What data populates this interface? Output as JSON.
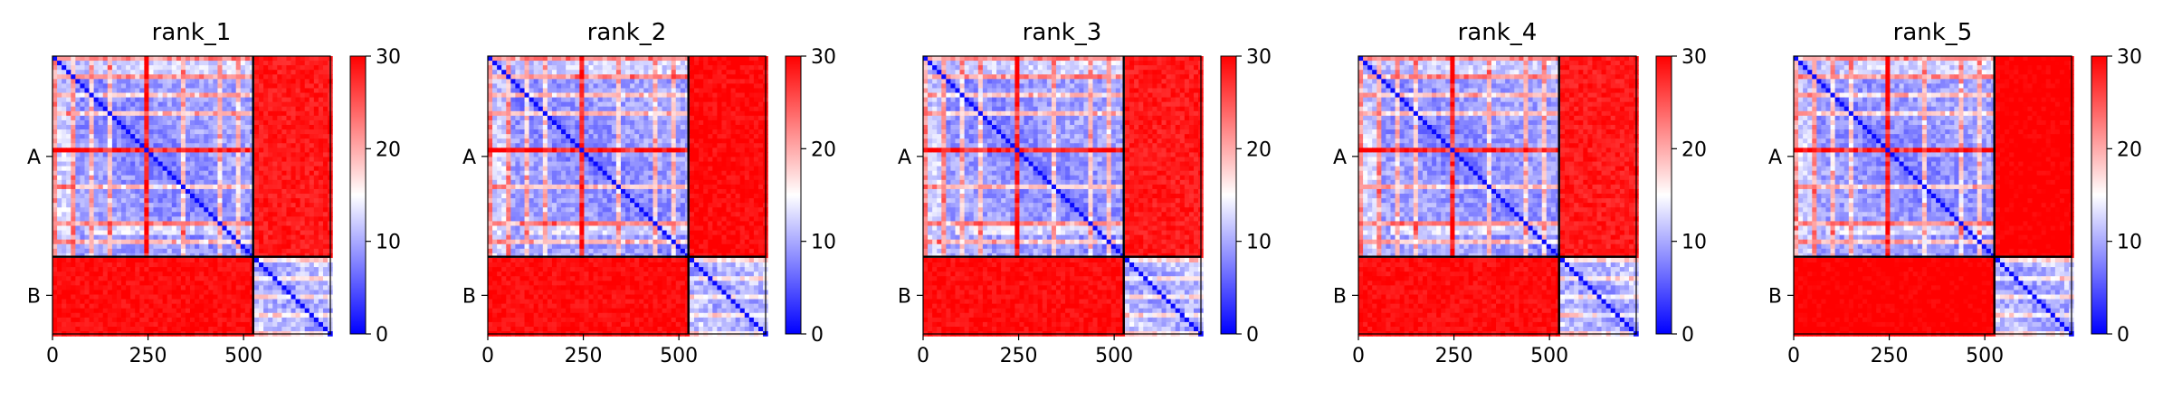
{
  "chart_data": [
    {
      "type": "heatmap",
      "title": "rank_1",
      "chains": [
        {
          "name": "A",
          "start": 0,
          "end": 525
        },
        {
          "name": "B",
          "start": 525,
          "end": 727
        }
      ],
      "xticks": [
        0,
        250,
        500
      ],
      "xlim": [
        0,
        727
      ],
      "colorbar": {
        "min": 0,
        "max": 30,
        "ticks": [
          0,
          10,
          20,
          30
        ],
        "colormap": "bwr"
      },
      "matrix_shade": {
        "A-A": 5,
        "A-B": 27,
        "B-A": 28,
        "B-B": 6
      }
    },
    {
      "type": "heatmap",
      "title": "rank_2",
      "chains": [
        {
          "name": "A",
          "start": 0,
          "end": 525
        },
        {
          "name": "B",
          "start": 525,
          "end": 727
        }
      ],
      "xticks": [
        0,
        250,
        500
      ],
      "xlim": [
        0,
        727
      ],
      "colorbar": {
        "min": 0,
        "max": 30,
        "ticks": [
          0,
          10,
          20,
          30
        ],
        "colormap": "bwr"
      },
      "matrix_shade": {
        "A-A": 5,
        "A-B": 28,
        "B-A": 28,
        "B-B": 6
      }
    },
    {
      "type": "heatmap",
      "title": "rank_3",
      "chains": [
        {
          "name": "A",
          "start": 0,
          "end": 525
        },
        {
          "name": "B",
          "start": 525,
          "end": 727
        }
      ],
      "xticks": [
        0,
        250,
        500
      ],
      "xlim": [
        0,
        727
      ],
      "colorbar": {
        "min": 0,
        "max": 30,
        "ticks": [
          0,
          10,
          20,
          30
        ],
        "colormap": "bwr"
      },
      "matrix_shade": {
        "A-A": 5,
        "A-B": 27,
        "B-A": 28,
        "B-B": 6
      }
    },
    {
      "type": "heatmap",
      "title": "rank_4",
      "chains": [
        {
          "name": "A",
          "start": 0,
          "end": 525
        },
        {
          "name": "B",
          "start": 525,
          "end": 727
        }
      ],
      "xticks": [
        0,
        250,
        500
      ],
      "xlim": [
        0,
        727
      ],
      "colorbar": {
        "min": 0,
        "max": 30,
        "ticks": [
          0,
          10,
          20,
          30
        ],
        "colormap": "bwr"
      },
      "matrix_shade": {
        "A-A": 5,
        "A-B": 27,
        "B-A": 28,
        "B-B": 6
      }
    },
    {
      "type": "heatmap",
      "title": "rank_5",
      "chains": [
        {
          "name": "A",
          "start": 0,
          "end": 525
        },
        {
          "name": "B",
          "start": 525,
          "end": 727
        }
      ],
      "xticks": [
        0,
        250,
        500
      ],
      "xlim": [
        0,
        727
      ],
      "colorbar": {
        "min": 0,
        "max": 30,
        "ticks": [
          0,
          10,
          20,
          30
        ],
        "colormap": "bwr"
      },
      "matrix_shade": {
        "A-A": 5,
        "A-B": 29,
        "B-A": 29,
        "B-B": 6
      }
    }
  ]
}
